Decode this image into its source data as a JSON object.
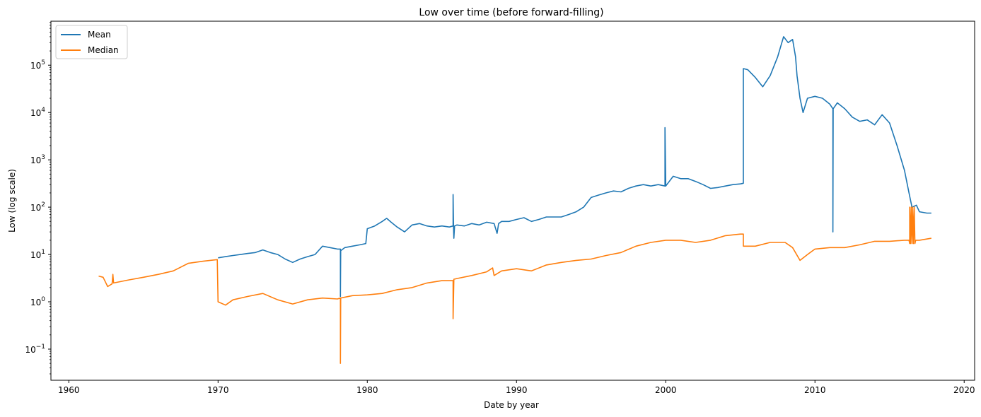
{
  "chart_data": {
    "type": "line",
    "title": "Low over time (before forward-filling)",
    "xlabel": "Date by year",
    "ylabel": "Low (log scale)",
    "yscale": "log",
    "xlim": [
      1958.8,
      2020.7
    ],
    "ylim": [
      0.022,
      850000
    ],
    "x_ticks": [
      1960,
      1970,
      1980,
      1990,
      2000,
      2010,
      2020
    ],
    "x_tick_labels": [
      "1960",
      "1970",
      "1980",
      "1990",
      "2000",
      "2010",
      "2020"
    ],
    "y_ticks": [
      0.1,
      1,
      10,
      100,
      1000,
      10000,
      100000
    ],
    "y_tick_labels": [
      {
        "base": "10",
        "exp": "−1"
      },
      {
        "base": "10",
        "exp": "0"
      },
      {
        "base": "10",
        "exp": "1"
      },
      {
        "base": "10",
        "exp": "2"
      },
      {
        "base": "10",
        "exp": "3"
      },
      {
        "base": "10",
        "exp": "4"
      },
      {
        "base": "10",
        "exp": "5"
      }
    ],
    "grid": false,
    "legend_position": "top-left",
    "series": [
      {
        "name": "Mean",
        "color": "#1f77b4",
        "points": [
          [
            1970.0,
            8.5
          ],
          [
            1970.5,
            9
          ],
          [
            1971.0,
            9.5
          ],
          [
            1971.5,
            10
          ],
          [
            1972.0,
            10.5
          ],
          [
            1972.5,
            11
          ],
          [
            1973.0,
            12.5
          ],
          [
            1973.5,
            11
          ],
          [
            1974.0,
            10
          ],
          [
            1974.5,
            8
          ],
          [
            1975.0,
            6.8
          ],
          [
            1975.5,
            8
          ],
          [
            1976.0,
            9
          ],
          [
            1976.5,
            10
          ],
          [
            1977.0,
            15
          ],
          [
            1977.5,
            14
          ],
          [
            1978.0,
            13
          ],
          [
            1978.2,
            13
          ],
          [
            1978.2,
            1.3
          ],
          [
            1978.22,
            12
          ],
          [
            1978.5,
            14
          ],
          [
            1979.0,
            15
          ],
          [
            1979.5,
            16
          ],
          [
            1979.9,
            17
          ],
          [
            1980.0,
            35
          ],
          [
            1980.5,
            40
          ],
          [
            1981.0,
            50
          ],
          [
            1981.3,
            58
          ],
          [
            1981.6,
            48
          ],
          [
            1982.0,
            38
          ],
          [
            1982.5,
            30
          ],
          [
            1983.0,
            42
          ],
          [
            1983.5,
            45
          ],
          [
            1984.0,
            40
          ],
          [
            1984.5,
            38
          ],
          [
            1985.0,
            40
          ],
          [
            1985.5,
            38
          ],
          [
            1985.75,
            40
          ],
          [
            1985.75,
            185
          ],
          [
            1985.78,
            40
          ],
          [
            1985.8,
            22
          ],
          [
            1985.85,
            40
          ],
          [
            1986.0,
            42
          ],
          [
            1986.5,
            40
          ],
          [
            1987.0,
            45
          ],
          [
            1987.5,
            42
          ],
          [
            1988.0,
            48
          ],
          [
            1988.5,
            45
          ],
          [
            1988.7,
            28
          ],
          [
            1988.8,
            45
          ],
          [
            1989.0,
            50
          ],
          [
            1989.5,
            50
          ],
          [
            1990.0,
            55
          ],
          [
            1990.5,
            60
          ],
          [
            1991.0,
            50
          ],
          [
            1991.5,
            55
          ],
          [
            1992.0,
            62
          ],
          [
            1992.5,
            62
          ],
          [
            1993.0,
            62
          ],
          [
            1993.5,
            70
          ],
          [
            1994.0,
            80
          ],
          [
            1994.5,
            100
          ],
          [
            1995.0,
            160
          ],
          [
            1995.5,
            180
          ],
          [
            1996.0,
            200
          ],
          [
            1996.5,
            220
          ],
          [
            1997.0,
            210
          ],
          [
            1997.5,
            250
          ],
          [
            1998.0,
            280
          ],
          [
            1998.5,
            300
          ],
          [
            1999.0,
            280
          ],
          [
            1999.5,
            300
          ],
          [
            1999.95,
            280
          ],
          [
            1999.95,
            4800
          ],
          [
            2000.0,
            280
          ],
          [
            2000.5,
            450
          ],
          [
            2001.0,
            400
          ],
          [
            2001.5,
            400
          ],
          [
            2002.0,
            350
          ],
          [
            2002.5,
            300
          ],
          [
            2003.0,
            250
          ],
          [
            2003.5,
            260
          ],
          [
            2004.0,
            280
          ],
          [
            2004.5,
            300
          ],
          [
            2005.0,
            310
          ],
          [
            2005.2,
            320
          ],
          [
            2005.2,
            85000
          ],
          [
            2005.5,
            80000
          ],
          [
            2006.0,
            55000
          ],
          [
            2006.5,
            35000
          ],
          [
            2007.0,
            60000
          ],
          [
            2007.5,
            150000
          ],
          [
            2007.9,
            400000
          ],
          [
            2008.2,
            300000
          ],
          [
            2008.5,
            350000
          ],
          [
            2008.7,
            150000
          ],
          [
            2008.8,
            60000
          ],
          [
            2009.0,
            20000
          ],
          [
            2009.2,
            10000
          ],
          [
            2009.5,
            20000
          ],
          [
            2010.0,
            22000
          ],
          [
            2010.5,
            20000
          ],
          [
            2011.0,
            15000
          ],
          [
            2011.2,
            12000
          ],
          [
            2011.2,
            30
          ],
          [
            2011.22,
            12000
          ],
          [
            2011.5,
            16000
          ],
          [
            2012.0,
            12000
          ],
          [
            2012.5,
            8000
          ],
          [
            2013.0,
            6500
          ],
          [
            2013.5,
            7000
          ],
          [
            2014.0,
            5500
          ],
          [
            2014.5,
            9000
          ],
          [
            2015.0,
            6000
          ],
          [
            2015.5,
            2000
          ],
          [
            2016.0,
            600
          ],
          [
            2016.3,
            200
          ],
          [
            2016.5,
            100
          ],
          [
            2016.8,
            110
          ],
          [
            2017.0,
            80
          ],
          [
            2017.5,
            75
          ],
          [
            2017.8,
            75
          ]
        ]
      },
      {
        "name": "Median",
        "color": "#ff7f0e",
        "points": [
          [
            1962.0,
            3.5
          ],
          [
            1962.3,
            3.3
          ],
          [
            1962.6,
            2.1
          ],
          [
            1962.9,
            2.4
          ],
          [
            1962.95,
            3.8
          ],
          [
            1963.0,
            2.5
          ],
          [
            1964.0,
            2.9
          ],
          [
            1965.0,
            3.3
          ],
          [
            1966.0,
            3.8
          ],
          [
            1967.0,
            4.5
          ],
          [
            1968.0,
            6.5
          ],
          [
            1969.0,
            7.2
          ],
          [
            1969.95,
            7.8
          ],
          [
            1970.0,
            1.0
          ],
          [
            1970.5,
            0.85
          ],
          [
            1971.0,
            1.1
          ],
          [
            1972.0,
            1.3
          ],
          [
            1973.0,
            1.5
          ],
          [
            1974.0,
            1.1
          ],
          [
            1975.0,
            0.9
          ],
          [
            1976.0,
            1.1
          ],
          [
            1977.0,
            1.2
          ],
          [
            1978.0,
            1.15
          ],
          [
            1978.2,
            1.2
          ],
          [
            1978.2,
            0.05
          ],
          [
            1978.22,
            1.2
          ],
          [
            1979.0,
            1.35
          ],
          [
            1980.0,
            1.4
          ],
          [
            1981.0,
            1.5
          ],
          [
            1982.0,
            1.8
          ],
          [
            1983.0,
            2.0
          ],
          [
            1984.0,
            2.5
          ],
          [
            1985.0,
            2.8
          ],
          [
            1985.75,
            2.8
          ],
          [
            1985.75,
            0.44
          ],
          [
            1985.8,
            3.0
          ],
          [
            1986.0,
            3.1
          ],
          [
            1987.0,
            3.6
          ],
          [
            1988.0,
            4.3
          ],
          [
            1988.4,
            5.2
          ],
          [
            1988.5,
            3.6
          ],
          [
            1989.0,
            4.5
          ],
          [
            1990.0,
            5.0
          ],
          [
            1991.0,
            4.5
          ],
          [
            1992.0,
            6.0
          ],
          [
            1993.0,
            6.8
          ],
          [
            1994.0,
            7.5
          ],
          [
            1995.0,
            8.0
          ],
          [
            1996.0,
            9.5
          ],
          [
            1997.0,
            11
          ],
          [
            1998.0,
            15
          ],
          [
            1999.0,
            18
          ],
          [
            2000.0,
            20
          ],
          [
            2001.0,
            20
          ],
          [
            2002.0,
            18
          ],
          [
            2003.0,
            20
          ],
          [
            2004.0,
            25
          ],
          [
            2005.0,
            27
          ],
          [
            2005.2,
            27
          ],
          [
            2005.2,
            15
          ],
          [
            2006.0,
            15
          ],
          [
            2007.0,
            18
          ],
          [
            2008.0,
            18
          ],
          [
            2008.5,
            14
          ],
          [
            2009.0,
            7.5
          ],
          [
            2009.5,
            10
          ],
          [
            2010.0,
            13
          ],
          [
            2011.0,
            14
          ],
          [
            2012.0,
            14
          ],
          [
            2013.0,
            16
          ],
          [
            2014.0,
            19
          ],
          [
            2015.0,
            19
          ],
          [
            2016.0,
            20
          ],
          [
            2016.3,
            20
          ],
          [
            2016.35,
            17
          ],
          [
            2016.35,
            100
          ],
          [
            2016.4,
            17
          ],
          [
            2016.45,
            100
          ],
          [
            2016.5,
            17
          ],
          [
            2016.55,
            100
          ],
          [
            2016.6,
            17
          ],
          [
            2016.65,
            100
          ],
          [
            2016.7,
            17
          ],
          [
            2016.75,
            20
          ],
          [
            2017.0,
            20
          ],
          [
            2017.8,
            22
          ]
        ]
      }
    ]
  }
}
